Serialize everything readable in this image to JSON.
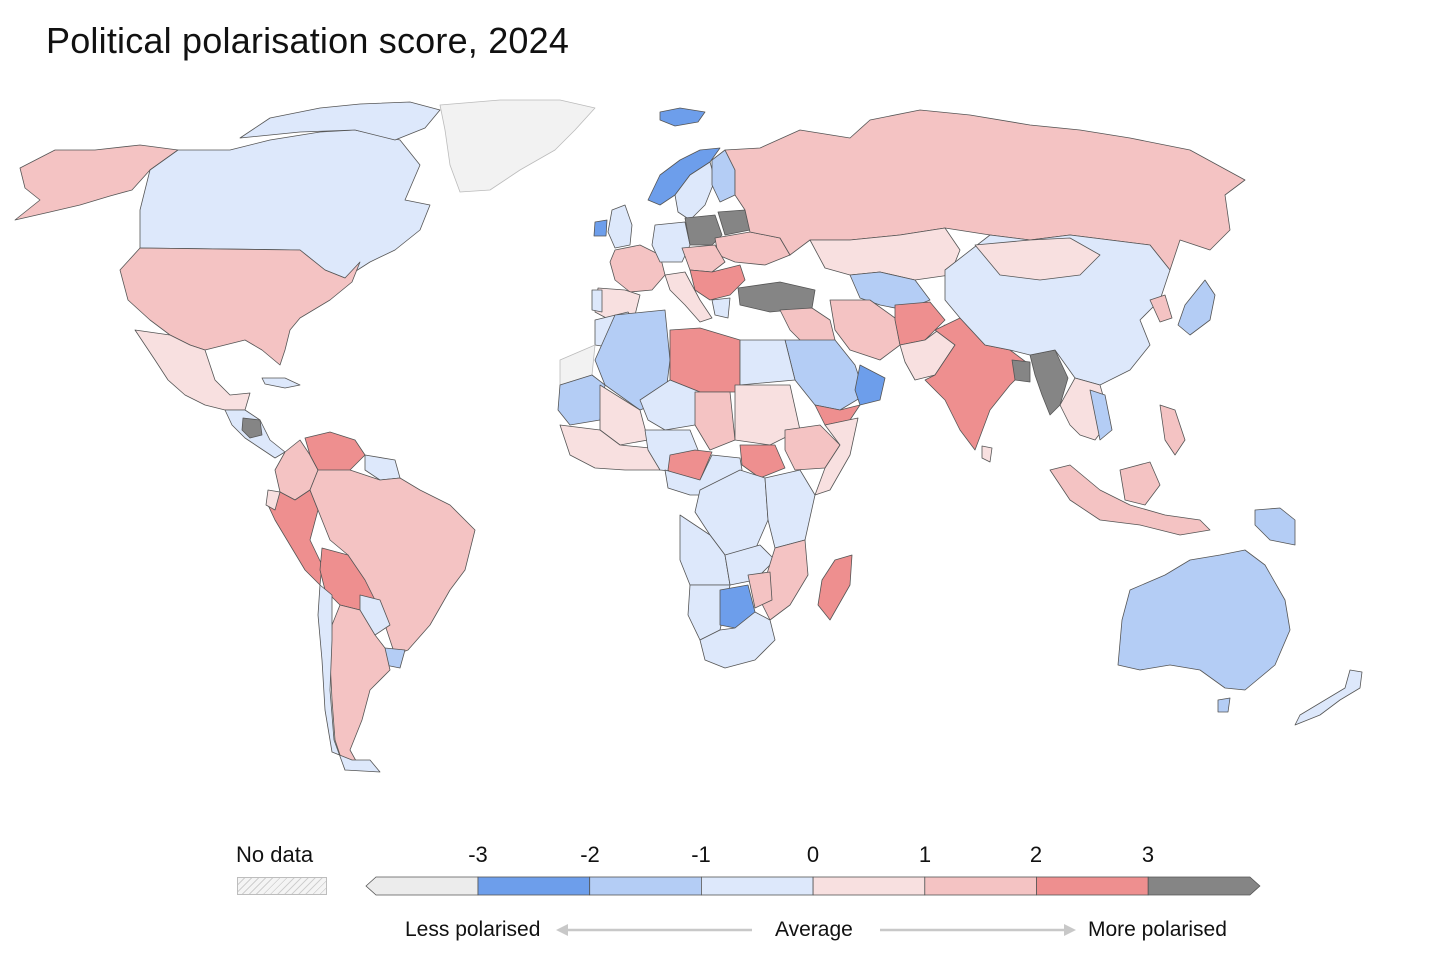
{
  "title": "Political polarisation score, 2024",
  "legend": {
    "no_data_label": "No data",
    "ticks": [
      "-3",
      "-2",
      "-1",
      "0",
      "1",
      "2",
      "3"
    ],
    "less_label": "Less polarised",
    "average_label": "Average",
    "more_label": "More polarised",
    "bins": [
      {
        "range": "below -3",
        "color": "#ececec"
      },
      {
        "range": "-3 to -2",
        "color": "#6d9eeb"
      },
      {
        "range": "-2 to -1",
        "color": "#b4cdf5"
      },
      {
        "range": "-1 to 0",
        "color": "#dde8fb"
      },
      {
        "range": "0 to 1",
        "color": "#f8e0e0"
      },
      {
        "range": "1 to 2",
        "color": "#f4c3c3"
      },
      {
        "range": "2 to 3",
        "color": "#ee8f8f"
      },
      {
        "range": "above 3",
        "color": "#858585"
      }
    ],
    "no_data_color": "#e6e6e6"
  },
  "colors": {
    "border": "#555555",
    "arrow": "#c8c8c8"
  }
}
